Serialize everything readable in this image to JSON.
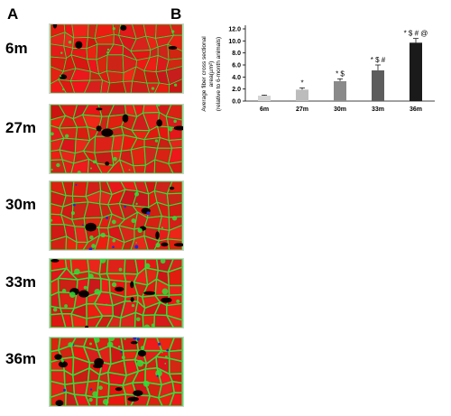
{
  "panels": {
    "a_letter": "A",
    "b_letter": "B"
  },
  "images": [
    {
      "label": "6m",
      "style": "sparse"
    },
    {
      "label": "27m",
      "style": "moderate"
    },
    {
      "label": "30m",
      "style": "moderate-blue"
    },
    {
      "label": "33m",
      "style": "dense"
    },
    {
      "label": "36m",
      "style": "dense-blue"
    }
  ],
  "colors": {
    "fiber": "#e0241a",
    "interstitial": "#2fe03a",
    "nuclei": "#1a2bd9",
    "background": "#140000"
  },
  "chart_data": {
    "type": "bar",
    "categories": [
      "6m",
      "27m",
      "30m",
      "33m",
      "36m"
    ],
    "values": [
      0.9,
      1.9,
      3.3,
      5.1,
      9.7
    ],
    "errors": [
      0.1,
      0.3,
      0.4,
      0.9,
      0.7
    ],
    "bar_colors": [
      "#d4d4d4",
      "#bcbcbc",
      "#8a8a8a",
      "#5d5d5d",
      "#1a1a1a"
    ],
    "significance": [
      "",
      "*",
      "* $",
      "* $ #",
      "* $ # @"
    ],
    "ylabel_lines": [
      "Average fiber cross sectional",
      "area(µm²)",
      "(relative to 6-month animals)"
    ],
    "yticks": [
      "0.0",
      "2.0",
      "4.0",
      "6.0",
      "8.0",
      "10.0",
      "12.0"
    ],
    "ylim": [
      0,
      12
    ],
    "xlabel": "",
    "title": ""
  }
}
